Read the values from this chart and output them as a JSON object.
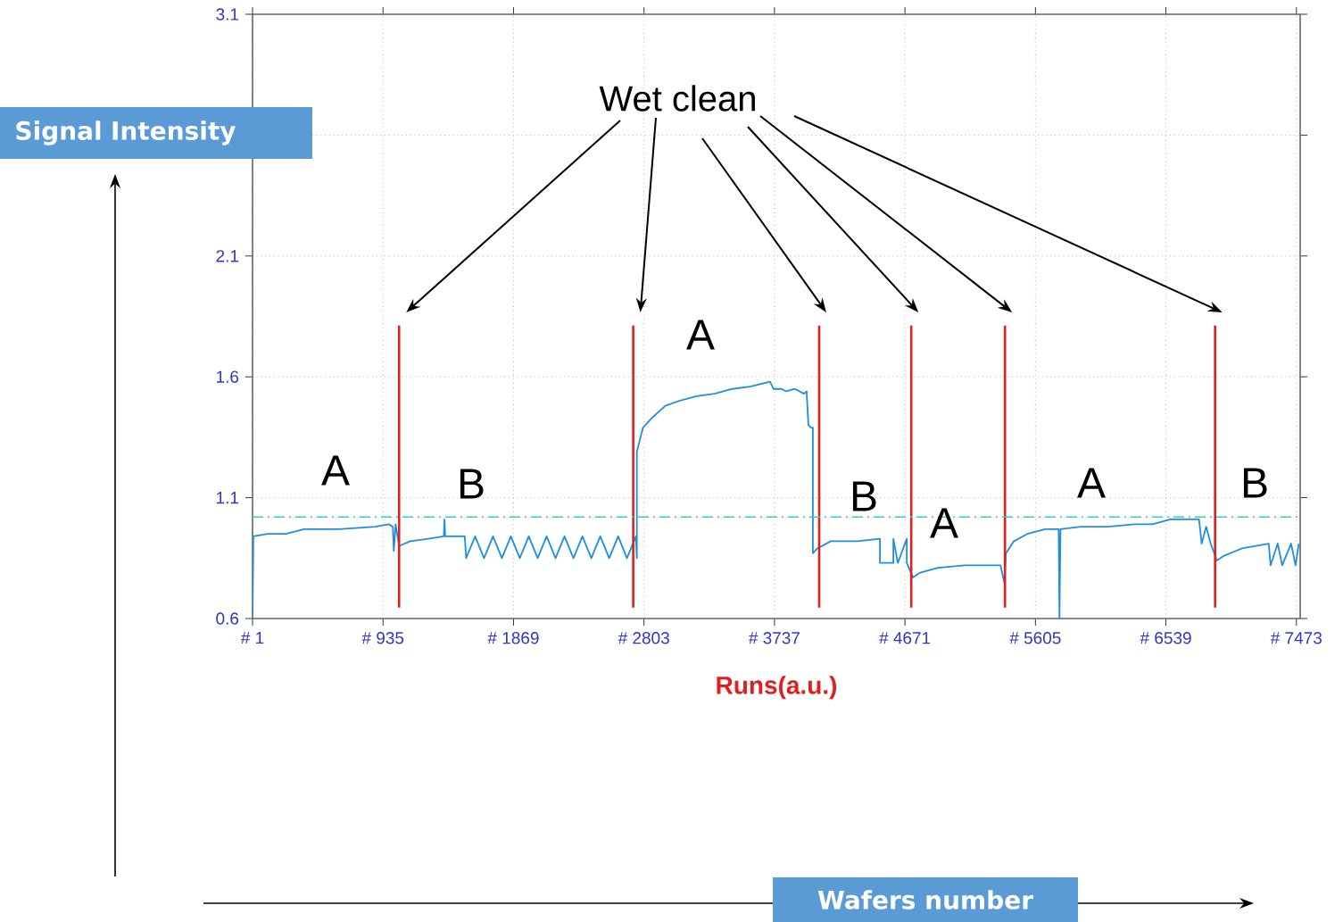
{
  "chart_data": {
    "type": "line",
    "xlabel": "Runs(a.u.)",
    "ylabel": "Signal Intensity",
    "xlim": [
      1,
      7500
    ],
    "ylim": [
      0.6,
      3.1
    ],
    "xticks": [
      {
        "value": 1,
        "label": "# 1"
      },
      {
        "value": 935,
        "label": "# 935"
      },
      {
        "value": 1869,
        "label": "# 1869"
      },
      {
        "value": 2803,
        "label": "# 2803"
      },
      {
        "value": 3737,
        "label": "# 3737"
      },
      {
        "value": 4671,
        "label": "# 4671"
      },
      {
        "value": 5605,
        "label": "# 5605"
      },
      {
        "value": 6539,
        "label": "# 6539"
      },
      {
        "value": 7473,
        "label": "# 7473"
      }
    ],
    "yticks": [
      0.6,
      1.1,
      1.6,
      2.1,
      {
        "value": 2.6,
        "label": null
      },
      3.1
    ],
    "grid": true,
    "color": "#1e8fe0",
    "x": [
      1,
      7,
      110,
      240,
      370,
      620,
      880,
      975,
      1005,
      1012,
      1025,
      1050,
      1130,
      1260,
      1370,
      1375,
      1380,
      1520,
      1530,
      1594,
      1658,
      1722,
      1786,
      1850,
      1914,
      1978,
      2042,
      2106,
      2170,
      2234,
      2298,
      2362,
      2426,
      2490,
      2554,
      2618,
      2681,
      2745,
      2752,
      2752,
      2796,
      2860,
      2956,
      3052,
      3180,
      3308,
      3436,
      3564,
      3705,
      3730,
      3788,
      3820,
      3884,
      3948,
      3967,
      3980,
      3999,
      4012,
      4012,
      4044,
      4140,
      4332,
      4492,
      4492,
      4588,
      4588,
      4620,
      4684,
      4684,
      4728,
      4780,
      4908,
      5100,
      5355,
      5381,
      5394,
      5451,
      5547,
      5675,
      5771,
      5777,
      5784,
      5931,
      6123,
      6315,
      6443,
      6571,
      6731,
      6776,
      6795,
      6827,
      6859,
      6904,
      6955,
      7083,
      7275,
      7288,
      7339,
      7371,
      7435,
      7467,
      7490
    ],
    "values": [
      0.6,
      0.94,
      0.95,
      0.95,
      0.97,
      0.97,
      0.98,
      0.99,
      0.98,
      0.88,
      0.99,
      0.9,
      0.92,
      0.93,
      0.94,
      1.01,
      0.94,
      0.94,
      0.85,
      0.94,
      0.85,
      0.94,
      0.85,
      0.94,
      0.85,
      0.94,
      0.85,
      0.94,
      0.85,
      0.94,
      0.85,
      0.94,
      0.85,
      0.94,
      0.85,
      0.94,
      0.85,
      0.94,
      0.85,
      1.29,
      1.39,
      1.43,
      1.48,
      1.5,
      1.52,
      1.53,
      1.55,
      1.56,
      1.58,
      1.55,
      1.55,
      1.54,
      1.55,
      1.53,
      1.54,
      1.4,
      1.39,
      1.39,
      0.87,
      0.89,
      0.92,
      0.92,
      0.93,
      0.83,
      0.83,
      0.93,
      0.83,
      0.93,
      0.83,
      0.77,
      0.79,
      0.81,
      0.82,
      0.82,
      0.75,
      0.87,
      0.92,
      0.95,
      0.97,
      0.97,
      0.6,
      0.97,
      0.98,
      0.98,
      0.99,
      0.99,
      1.01,
      1.01,
      1.01,
      0.91,
      0.98,
      0.91,
      0.84,
      0.86,
      0.89,
      0.91,
      0.82,
      0.91,
      0.82,
      0.91,
      0.82,
      0.91
    ],
    "ref_lines": [
      {
        "axis": "x",
        "value": 1050,
        "color": "#e0201c"
      },
      {
        "axis": "x",
        "value": 2726,
        "color": "#e0201c"
      },
      {
        "axis": "x",
        "value": 4057,
        "color": "#e0201c"
      },
      {
        "axis": "x",
        "value": 4716,
        "color": "#e0201c"
      },
      {
        "axis": "x",
        "value": 5387,
        "color": "#e0201c"
      },
      {
        "axis": "x",
        "value": 6891,
        "color": "#e0201c"
      },
      {
        "axis": "y",
        "value": 1.02,
        "color": "#33cccc",
        "line_style": "dashed"
      }
    ],
    "annotations": [
      "Wet clean",
      "A",
      "B",
      "A",
      "B",
      "A",
      "A",
      "B",
      "Wafers number"
    ]
  }
}
